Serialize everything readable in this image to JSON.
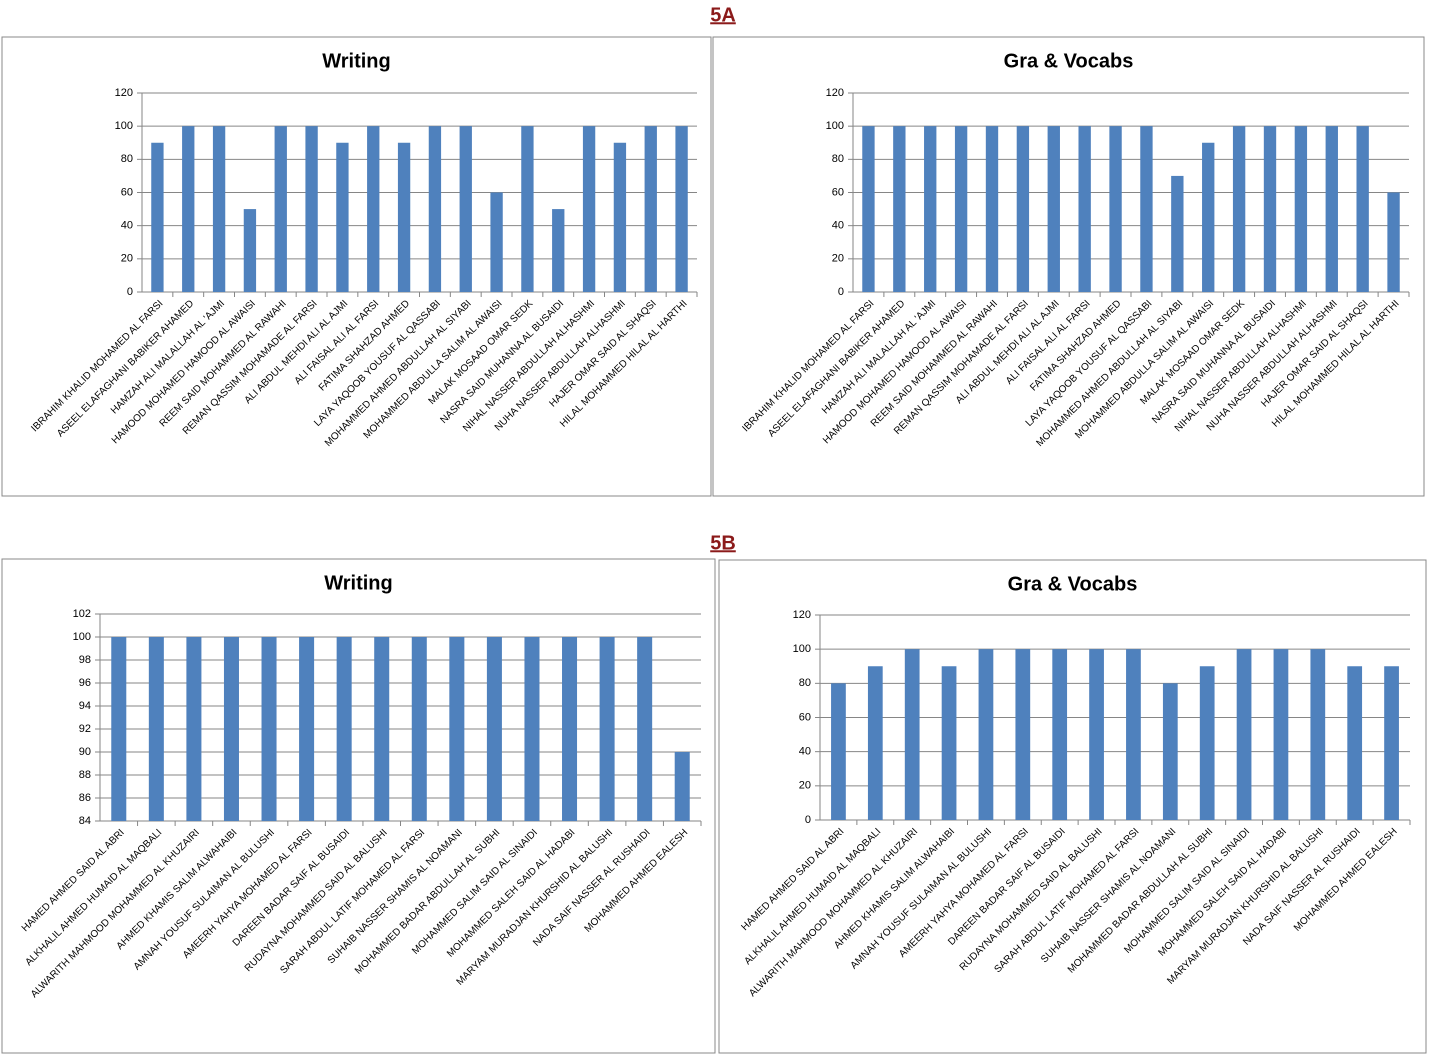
{
  "sections": [
    "5A",
    "5B"
  ],
  "chart_data": [
    {
      "type": "bar",
      "title": "Writing",
      "color": "#4f81bd",
      "grid": true,
      "ylim": [
        0,
        120
      ],
      "yticks": [
        0,
        20,
        40,
        60,
        80,
        100,
        120
      ],
      "categories": [
        "IBRAHIM KHALID MOHAMED AL FARSI",
        "ASEEL ELAFAGHANI BABIKER AHAMED",
        "HAMZAH ALI MALALLAH AL 'AJMI",
        "HAMOOD MOHAMED HAMOOD AL AWAISI",
        "REEM SAID MOHAMMED AL RAWAHI",
        "REMAN QASSIM MOHAMADE AL FARSI",
        "ALI ABDUL MEHDI ALI AL AJMI",
        "ALI FAISAL ALI AL FARSI",
        "FATIMA SHAHZAD AHMED",
        "LAYA YAQOOB YOUSUF AL QASSABI",
        "MOHAMMED AHMED ABDULLAH AL SIYABI",
        "MOHAMMED ABDULLA SALIM AL AWAISI",
        "MALAK MOSAAD OMAR SEDK",
        "NASRA SAID MUHANNA AL BUSAIDI",
        "NIHAL NASSER ABDULLAH ALHASHMI",
        "NUHA NASSER ABDULLAH ALHASHMI",
        "HAJER OMAR SAID AL SHAQSI",
        "HILAL MOHAMMED HILAL AL HARTHI"
      ],
      "values": [
        90,
        100,
        100,
        50,
        100,
        100,
        90,
        100,
        90,
        100,
        100,
        60,
        100,
        50,
        100,
        90,
        100,
        100
      ]
    },
    {
      "type": "bar",
      "title": "Gra & Vocabs",
      "color": "#4f81bd",
      "grid": true,
      "ylim": [
        0,
        120
      ],
      "yticks": [
        0,
        20,
        40,
        60,
        80,
        100,
        120
      ],
      "categories": [
        "IBRAHIM KHALID MOHAMED AL FARSI",
        "ASEEL ELAFAGHANI BABIKER AHAMED",
        "HAMZAH ALI MALALLAH AL 'AJMI",
        "HAMOOD MOHAMED HAMOOD AL AWAISI",
        "REEM SAID MOHAMMED AL RAWAHI",
        "REMAN QASSIM MOHAMADE AL FARSI",
        "ALI ABDUL MEHDI ALI AL AJMI",
        "ALI FAISAL ALI AL FARSI",
        "FATIMA SHAHZAD AHMED",
        "LAYA YAQOOB YOUSUF AL QASSABI",
        "MOHAMMED AHMED ABDULLAH AL SIYABI",
        "MOHAMMED ABDULLA SALIM AL AWAISI",
        "MALAK MOSAAD OMAR SEDK",
        "NASRA SAID MUHANNA AL BUSAIDI",
        "NIHAL NASSER ABDULLAH ALHASHMI",
        "NUHA NASSER ABDULLAH ALHASHMI",
        "HAJER OMAR SAID AL SHAQSI",
        "HILAL MOHAMMED HILAL AL HARTHI"
      ],
      "values": [
        100,
        100,
        100,
        100,
        100,
        100,
        100,
        100,
        100,
        100,
        70,
        90,
        100,
        100,
        100,
        100,
        100,
        60
      ]
    },
    {
      "type": "bar",
      "title": "Writing",
      "color": "#4f81bd",
      "grid": true,
      "ylim": [
        84,
        102
      ],
      "yticks": [
        84,
        86,
        88,
        90,
        92,
        94,
        96,
        98,
        100,
        102
      ],
      "categories": [
        "HAMED AHMED SAID AL ABRI",
        "ALKHALIL AHMED HUMAID AL MAQBALI",
        "ALWARITH MAHMOOD MOHAMMED AL KHUZAIRI",
        "AHMED KHAMIS SALIM ALWAHAIBI",
        "AMNAH YOUSUF SULAIMAN AL BULUSHI",
        "AMEERH YAHYA MOHAMED  AL FARSI",
        "DAREEN BADAR SAIF AL BUSAIDI",
        "RUDAYNA MOHAMMED SAID AL BALUSHI",
        "SARAH ABDUL LATIF MOHAMED AL FARSI",
        "SUHAIB NASSER SHAMIS AL NOAMANI",
        "MOHAMMED BADAR ABDULLAH AL SUBHI",
        "MOHAMMED SALIM SAID AL SINAIDI",
        "MOHAMMED SALEH SAID AL HADABI",
        "MARYAM MURADJAN KHURSHID AL BALUSHI",
        "NADA SAIF NASSER AL RUSHAIDI",
        "MOHAMMED AHMED EALESH"
      ],
      "values": [
        100,
        100,
        100,
        100,
        100,
        100,
        100,
        100,
        100,
        100,
        100,
        100,
        100,
        100,
        100,
        90
      ]
    },
    {
      "type": "bar",
      "title": "Gra & Vocabs",
      "color": "#4f81bd",
      "grid": true,
      "ylim": [
        0,
        120
      ],
      "yticks": [
        0,
        20,
        40,
        60,
        80,
        100,
        120
      ],
      "categories": [
        "HAMED AHMED SAID AL ABRI",
        "ALKHALIL AHMED HUMAID AL MAQBALI",
        "ALWARITH MAHMOOD MOHAMMED AL KHUZAIRI",
        "AHMED KHAMIS SALIM ALWAHAIBI",
        "AMNAH YOUSUF SULAIMAN AL BULUSHI",
        "AMEERH YAHYA MOHAMED  AL FARSI",
        "DAREEN BADAR SAIF AL BUSAIDI",
        "RUDAYNA MOHAMMED SAID AL BALUSHI",
        "SARAH ABDUL LATIF MOHAMED AL FARSI",
        "SUHAIB NASSER SHAMIS AL NOAMANI",
        "MOHAMMED BADAR ABDULLAH AL SUBHI",
        "MOHAMMED SALIM SAID AL SINAIDI",
        "MOHAMMED SALEH SAID AL HADABI",
        "MARYAM MURADJAN KHURSHID AL BALUSHI",
        "NADA SAIF NASSER AL RUSHAIDI",
        "MOHAMMED AHMED EALESH"
      ],
      "values": [
        80,
        90,
        100,
        90,
        100,
        100,
        100,
        100,
        100,
        80,
        90,
        100,
        100,
        100,
        90,
        90
      ]
    }
  ]
}
